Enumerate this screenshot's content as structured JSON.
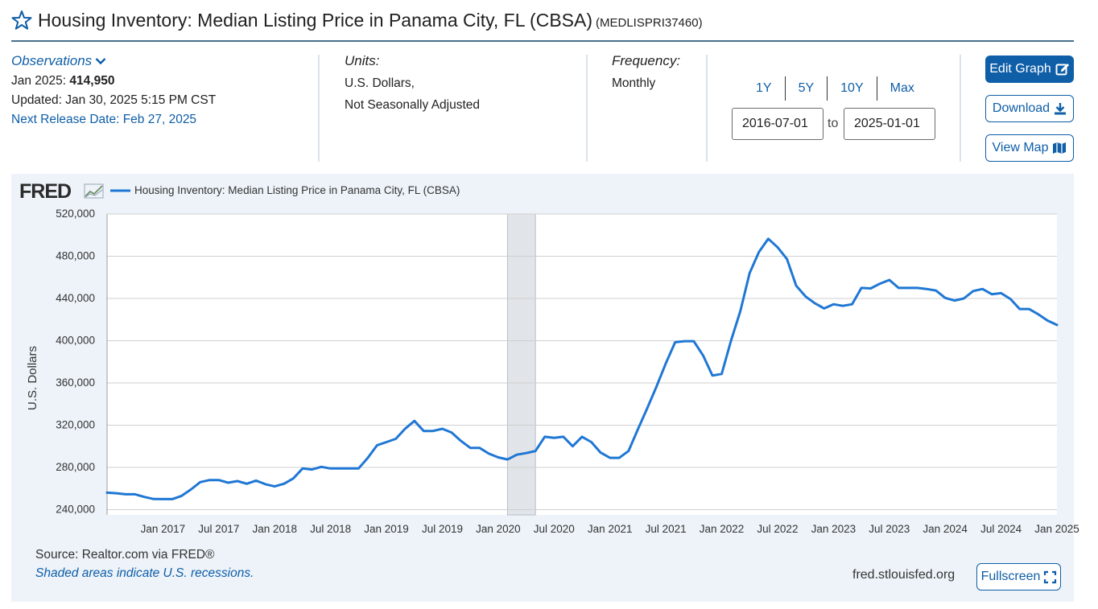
{
  "header": {
    "title": "Housing Inventory: Median Listing Price in Panama City, FL (CBSA)",
    "series_id": "(MEDLISPRI37460)"
  },
  "observations": {
    "link_label": "Observations",
    "latest_label": "Jan 2025:",
    "latest_value": "414,950",
    "updated": "Updated: Jan 30, 2025 5:15 PM CST",
    "next_release": "Next Release Date: Feb 27, 2025"
  },
  "units": {
    "heading": "Units:",
    "line1": "U.S. Dollars,",
    "line2": "Not Seasonally Adjusted"
  },
  "frequency": {
    "heading": "Frequency:",
    "value": "Monthly"
  },
  "range": {
    "buttons": [
      "1Y",
      "5Y",
      "10Y",
      "Max"
    ],
    "from": "2016-07-01",
    "to_label": "to",
    "to": "2025-01-01"
  },
  "actions": {
    "edit_graph": "Edit Graph",
    "download": "Download",
    "view_map": "View Map",
    "fullscreen": "Fullscreen"
  },
  "footer": {
    "source": "Source: Realtor.com via FRED®",
    "recession_note": "Shaded areas indicate U.S. recessions.",
    "url": "fred.stlouisfed.org"
  },
  "colors": {
    "line": "#1f77d4",
    "accent": "#0e5ea8",
    "recession": "#e1e4e8",
    "panel": "#edf3f9"
  },
  "chart_data": {
    "type": "line",
    "logo": "FRED",
    "legend": "Housing Inventory: Median Listing Price in Panama City, FL (CBSA)",
    "ylabel": "U.S. Dollars",
    "xlabel": "",
    "ylim": [
      235000,
      520000
    ],
    "yticks": [
      240000,
      280000,
      320000,
      360000,
      400000,
      440000,
      480000,
      520000
    ],
    "ytick_labels": [
      "240,000",
      "280,000",
      "320,000",
      "360,000",
      "400,000",
      "440,000",
      "480,000",
      "520,000"
    ],
    "xlim": [
      "2016-07",
      "2025-01"
    ],
    "xticks": [
      "2017-01",
      "2017-07",
      "2018-01",
      "2018-07",
      "2019-01",
      "2019-07",
      "2020-01",
      "2020-07",
      "2021-01",
      "2021-07",
      "2022-01",
      "2022-07",
      "2023-01",
      "2023-07",
      "2024-01",
      "2024-07",
      "2025-01"
    ],
    "xtick_labels": [
      "Jan 2017",
      "Jul 2017",
      "Jan 2018",
      "Jul 2018",
      "Jan 2019",
      "Jul 2019",
      "Jan 2020",
      "Jul 2020",
      "Jan 2021",
      "Jul 2021",
      "Jan 2022",
      "Jul 2022",
      "Jan 2023",
      "Jul 2023",
      "Jan 2024",
      "Jul 2024",
      "Jan 2025"
    ],
    "recessions": [
      {
        "start": "2020-02",
        "end": "2020-04"
      }
    ],
    "grid": true,
    "series": [
      {
        "name": "Housing Inventory: Median Listing Price in Panama City, FL (CBSA)",
        "x": [
          "2016-07",
          "2016-08",
          "2016-09",
          "2016-10",
          "2016-11",
          "2016-12",
          "2017-01",
          "2017-02",
          "2017-03",
          "2017-04",
          "2017-05",
          "2017-06",
          "2017-07",
          "2017-08",
          "2017-09",
          "2017-10",
          "2017-11",
          "2017-12",
          "2018-01",
          "2018-02",
          "2018-03",
          "2018-04",
          "2018-05",
          "2018-06",
          "2018-07",
          "2018-08",
          "2018-09",
          "2018-10",
          "2018-11",
          "2018-12",
          "2019-01",
          "2019-02",
          "2019-03",
          "2019-04",
          "2019-05",
          "2019-06",
          "2019-07",
          "2019-08",
          "2019-09",
          "2019-10",
          "2019-11",
          "2019-12",
          "2020-01",
          "2020-02",
          "2020-03",
          "2020-04",
          "2020-05",
          "2020-06",
          "2020-07",
          "2020-08",
          "2020-09",
          "2020-10",
          "2020-11",
          "2020-12",
          "2021-01",
          "2021-02",
          "2021-03",
          "2021-04",
          "2021-05",
          "2021-06",
          "2021-07",
          "2021-08",
          "2021-09",
          "2021-10",
          "2021-11",
          "2021-12",
          "2022-01",
          "2022-02",
          "2022-03",
          "2022-04",
          "2022-05",
          "2022-06",
          "2022-07",
          "2022-08",
          "2022-09",
          "2022-10",
          "2022-11",
          "2022-12",
          "2023-01",
          "2023-02",
          "2023-03",
          "2023-04",
          "2023-05",
          "2023-06",
          "2023-07",
          "2023-08",
          "2023-09",
          "2023-10",
          "2023-11",
          "2023-12",
          "2024-01",
          "2024-02",
          "2024-03",
          "2024-04",
          "2024-05",
          "2024-06",
          "2024-07",
          "2024-08",
          "2024-09",
          "2024-10",
          "2024-11",
          "2024-12",
          "2025-01"
        ],
        "values": [
          256000,
          255500,
          254500,
          254500,
          252000,
          250000,
          249900,
          249900,
          253000,
          259000,
          266000,
          268000,
          268000,
          265500,
          267000,
          264500,
          267500,
          264000,
          262000,
          264500,
          269500,
          279000,
          278000,
          280500,
          279000,
          279000,
          279000,
          279000,
          289000,
          301000,
          304000,
          307000,
          316500,
          324000,
          314500,
          314500,
          316500,
          313000,
          305000,
          298500,
          298500,
          293000,
          289500,
          287500,
          292000,
          293500,
          295500,
          309000,
          308000,
          309000,
          300000,
          309000,
          304000,
          294000,
          289000,
          289000,
          295500,
          316000,
          336000,
          356500,
          378500,
          398500,
          399500,
          399500,
          386000,
          367000,
          368500,
          400000,
          428000,
          464000,
          484000,
          496500,
          488500,
          477500,
          452000,
          442000,
          435500,
          430500,
          434500,
          433000,
          434500,
          450000,
          449500,
          454000,
          457500,
          450000,
          450000,
          450000,
          449000,
          447500,
          440500,
          438000,
          440000,
          447000,
          449000,
          444000,
          445000,
          439500,
          430000,
          430000,
          425000,
          419000,
          414950
        ]
      }
    ]
  }
}
